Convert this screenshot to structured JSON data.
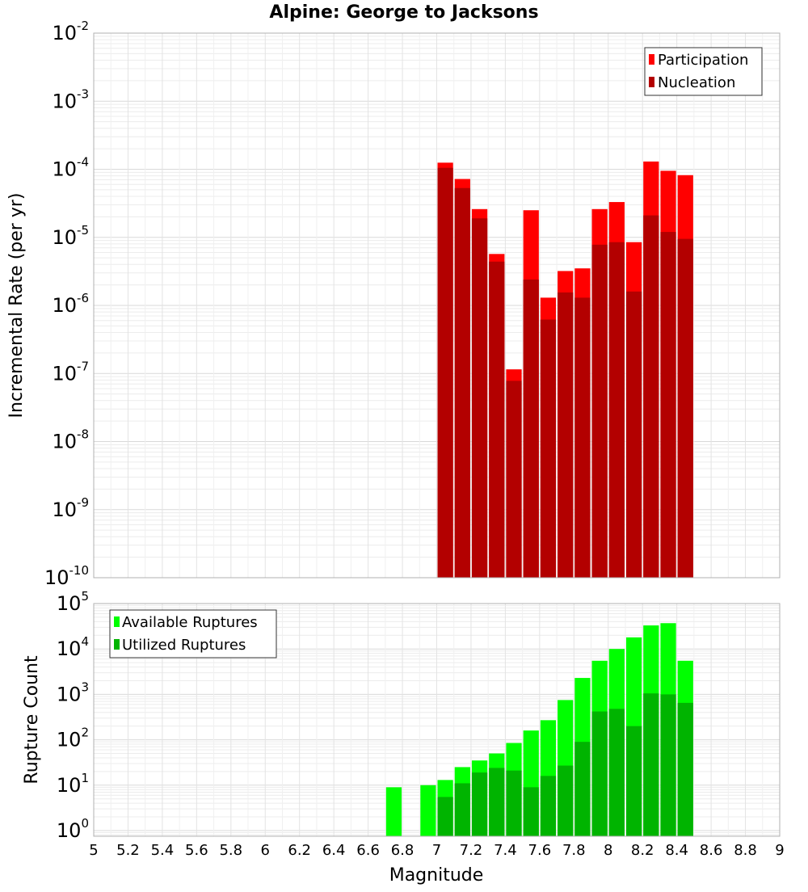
{
  "title": "Alpine: George to Jacksons",
  "chart_data": [
    {
      "type": "bar",
      "name": "rate-panel",
      "ylabel": "Incremental Rate (per yr)",
      "yscale": "log",
      "ylim": [
        1e-10,
        0.01
      ],
      "xlim": [
        5,
        9
      ],
      "grid": true,
      "legend_position": "top-right",
      "y_ticks": [
        {
          "base": "10",
          "exp": "-10"
        },
        {
          "base": "10",
          "exp": "-9"
        },
        {
          "base": "10",
          "exp": "-8"
        },
        {
          "base": "10",
          "exp": "-7"
        },
        {
          "base": "10",
          "exp": "-6"
        },
        {
          "base": "10",
          "exp": "-5"
        },
        {
          "base": "10",
          "exp": "-4"
        },
        {
          "base": "10",
          "exp": "-3"
        },
        {
          "base": "10",
          "exp": "-2"
        }
      ],
      "x": [
        7.05,
        7.15,
        7.25,
        7.35,
        7.45,
        7.55,
        7.65,
        7.75,
        7.85,
        7.95,
        8.05,
        8.15,
        8.25,
        8.35,
        8.45
      ],
      "series": [
        {
          "name": "Participation",
          "color": "#ff0000",
          "values": [
            0.000125,
            7.2e-05,
            2.6e-05,
            5.7e-06,
            1.15e-07,
            2.5e-05,
            1.3e-06,
            3.2e-06,
            3.5e-06,
            2.6e-05,
            3.3e-05,
            8.5e-06,
            0.00013,
            9.5e-05,
            8.2e-05
          ]
        },
        {
          "name": "Nucleation",
          "color": "#b30000",
          "values": [
            0.000105,
            5.3e-05,
            1.9e-05,
            4.4e-06,
            7.8e-08,
            2.4e-06,
            6.2e-07,
            1.55e-06,
            1.3e-06,
            7.8e-06,
            8.5e-06,
            1.6e-06,
            2.1e-05,
            1.2e-05,
            9.5e-06
          ]
        }
      ]
    },
    {
      "type": "bar",
      "name": "rupture-count-panel",
      "ylabel": "Rupture Count",
      "xlabel": "Magnitude",
      "yscale": "log",
      "ylim": [
        0.75,
        100000.0
      ],
      "xlim": [
        5,
        9
      ],
      "grid": true,
      "legend_position": "top-left",
      "y_ticks": [
        {
          "base": "10",
          "exp": "0"
        },
        {
          "base": "10",
          "exp": "1"
        },
        {
          "base": "10",
          "exp": "2"
        },
        {
          "base": "10",
          "exp": "3"
        },
        {
          "base": "10",
          "exp": "4"
        },
        {
          "base": "10",
          "exp": "5"
        }
      ],
      "x_ticks": [
        "5",
        "5.2",
        "5.4",
        "5.6",
        "5.8",
        "6",
        "6.2",
        "6.4",
        "6.6",
        "6.8",
        "7",
        "7.2",
        "7.4",
        "7.6",
        "7.8",
        "8",
        "8.2",
        "8.4",
        "8.6",
        "8.8",
        "9"
      ],
      "x": [
        6.75,
        6.95,
        7.05,
        7.15,
        7.25,
        7.35,
        7.45,
        7.55,
        7.65,
        7.75,
        7.85,
        7.95,
        8.05,
        8.15,
        8.25,
        8.35,
        8.45
      ],
      "series": [
        {
          "name": "Available Ruptures",
          "color": "#00ff00",
          "values": [
            9,
            10,
            13,
            25,
            35,
            50,
            85,
            160,
            270,
            750,
            2300,
            5500,
            10000,
            18000,
            33000,
            37000,
            5500
          ]
        },
        {
          "name": "Utilized Ruptures",
          "color": "#00b400",
          "values": [
            0,
            0,
            5.5,
            11,
            19,
            24,
            21,
            9,
            16,
            27,
            90,
            420,
            480,
            200,
            1050,
            1000,
            650
          ]
        }
      ]
    }
  ]
}
